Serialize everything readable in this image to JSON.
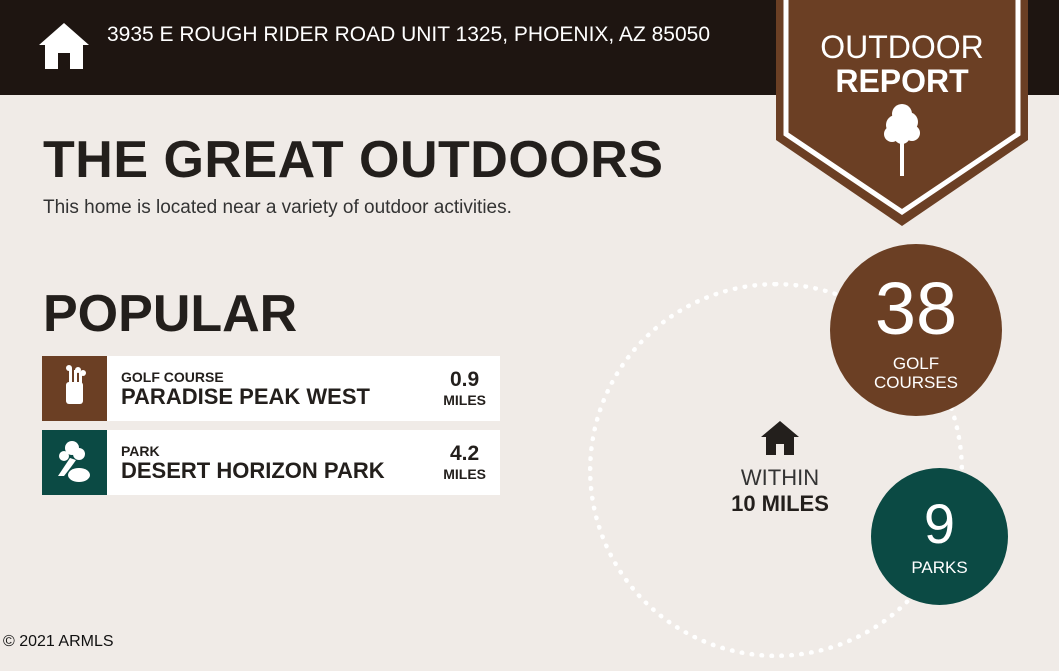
{
  "header": {
    "address": "3935 E ROUGH RIDER ROAD UNIT 1325, PHOENIX, AZ 85050",
    "icon": "home-icon"
  },
  "badge": {
    "line1": "OUTDOOR",
    "line2": "REPORT",
    "icon": "tree-icon"
  },
  "main": {
    "title": "THE GREAT OUTDOORS",
    "subtitle": "This home is located near a variety of outdoor activities.",
    "popular_heading": "POPULAR"
  },
  "popular": [
    {
      "category": "GOLF COURSE",
      "name": "PARADISE PEAK WEST",
      "distance": "0.9",
      "unit": "MILES",
      "icon": "golf-bag-icon",
      "color": "#6b3f24"
    },
    {
      "category": "PARK",
      "name": "DESERT HORIZON PARK",
      "distance": "4.2",
      "unit": "MILES",
      "icon": "park-tree-icon",
      "color": "#0b4a44"
    }
  ],
  "radius": {
    "line1": "WITHIN",
    "line2": "10 MILES",
    "icon": "home-icon"
  },
  "stats": [
    {
      "count": "38",
      "label1": "GOLF",
      "label2": "COURSES",
      "color": "#6b3f24"
    },
    {
      "count": "9",
      "label1": "PARKS",
      "color": "#0b4a44"
    }
  ],
  "copyright": "2021 ARMLS"
}
